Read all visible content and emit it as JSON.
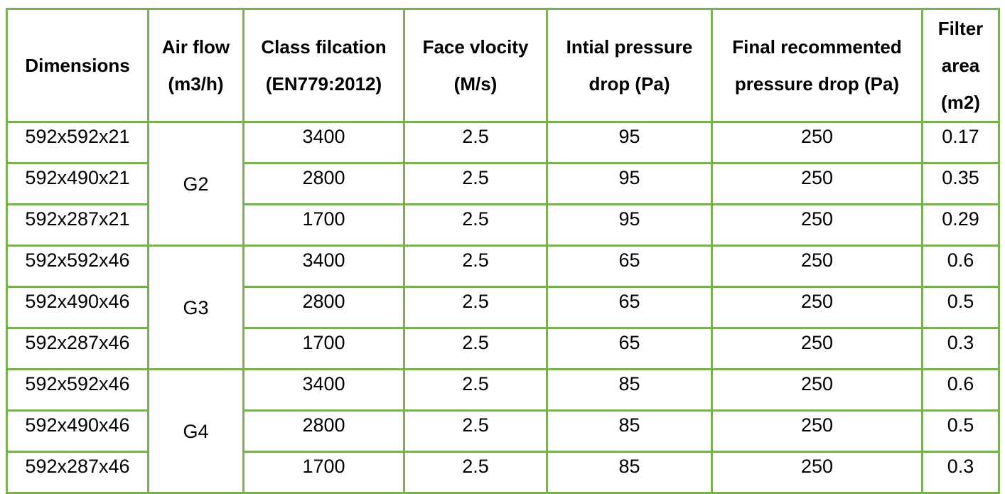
{
  "headers": [
    {
      "lines": [
        "Dimensions"
      ]
    },
    {
      "lines": [
        "Air flow",
        "(m3/h)"
      ]
    },
    {
      "lines": [
        "Class filcation",
        "(EN779:2012)"
      ]
    },
    {
      "lines": [
        "Face vlocity",
        "(M/s)"
      ]
    },
    {
      "lines": [
        "Intial pressure",
        "drop (Pa)"
      ]
    },
    {
      "lines": [
        "Final recommented",
        "pressure drop (Pa)"
      ]
    },
    {
      "lines": [
        "Filter",
        "area",
        "(m2)"
      ]
    }
  ],
  "groups": [
    {
      "class": "G2",
      "rows": [
        {
          "dimensions": "592x592x21",
          "air_flow": "3400",
          "face_velocity": "2.5",
          "initial_pd": "95",
          "final_pd": "250",
          "filter_area": "0.17"
        },
        {
          "dimensions": "592x490x21",
          "air_flow": "2800",
          "face_velocity": "2.5",
          "initial_pd": "95",
          "final_pd": "250",
          "filter_area": "0.35"
        },
        {
          "dimensions": "592x287x21",
          "air_flow": "1700",
          "face_velocity": "2.5",
          "initial_pd": "95",
          "final_pd": "250",
          "filter_area": "0.29"
        }
      ]
    },
    {
      "class": "G3",
      "rows": [
        {
          "dimensions": "592x592x46",
          "air_flow": "3400",
          "face_velocity": "2.5",
          "initial_pd": "65",
          "final_pd": "250",
          "filter_area": "0.6"
        },
        {
          "dimensions": "592x490x46",
          "air_flow": "2800",
          "face_velocity": "2.5",
          "initial_pd": "65",
          "final_pd": "250",
          "filter_area": "0.5"
        },
        {
          "dimensions": "592x287x46",
          "air_flow": "1700",
          "face_velocity": "2.5",
          "initial_pd": "65",
          "final_pd": "250",
          "filter_area": "0.3"
        }
      ]
    },
    {
      "class": "G4",
      "rows": [
        {
          "dimensions": "592x592x46",
          "air_flow": "3400",
          "face_velocity": "2.5",
          "initial_pd": "85",
          "final_pd": "250",
          "filter_area": "0.6"
        },
        {
          "dimensions": "592x490x46",
          "air_flow": "2800",
          "face_velocity": "2.5",
          "initial_pd": "85",
          "final_pd": "250",
          "filter_area": "0.5"
        },
        {
          "dimensions": "592x287x46",
          "air_flow": "1700",
          "face_velocity": "2.5",
          "initial_pd": "85",
          "final_pd": "250",
          "filter_area": "0.3"
        }
      ]
    }
  ],
  "colors": {
    "border": "#77b152",
    "text": "#000000",
    "background": "#ffffff"
  }
}
